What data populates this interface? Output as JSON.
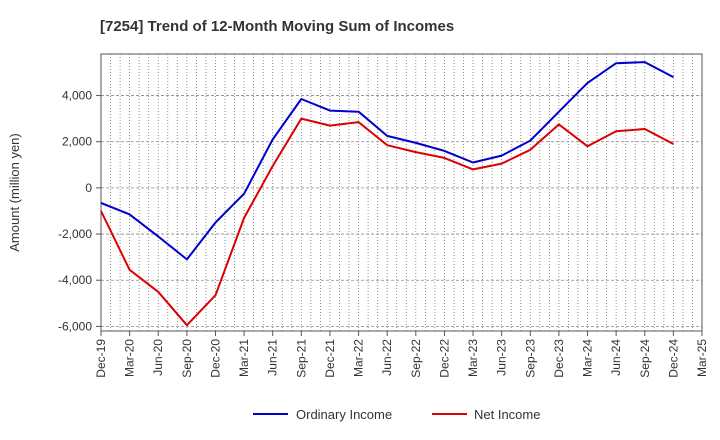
{
  "chart_data": {
    "type": "line",
    "title": "[7254]  Trend of 12-Month Moving Sum of Incomes",
    "xlabel": "",
    "ylabel": "Amount (million yen)",
    "ylim": [
      -6200,
      5800
    ],
    "yticks": [
      -6000,
      -4000,
      -2000,
      0,
      2000,
      4000
    ],
    "ytick_labels": [
      "-6,000",
      "-4,000",
      "-2,000",
      "0",
      "2,000",
      "4,000"
    ],
    "x_tick_labels": [
      "Dec-19",
      "Mar-20",
      "Jun-20",
      "Sep-20",
      "Dec-20",
      "Mar-21",
      "Jun-21",
      "Sep-21",
      "Dec-21",
      "Mar-22",
      "Jun-22",
      "Sep-22",
      "Dec-22",
      "Mar-23",
      "Jun-23",
      "Sep-23",
      "Dec-23",
      "Mar-24",
      "Jun-24",
      "Sep-24",
      "Dec-24",
      "Mar-25"
    ],
    "categories": [
      "Dec-19",
      "Mar-20",
      "Jun-20",
      "Sep-20",
      "Dec-20",
      "Mar-21",
      "Jun-21",
      "Sep-21",
      "Dec-21",
      "Mar-22",
      "Jun-22",
      "Sep-22",
      "Dec-22",
      "Mar-23",
      "Jun-23",
      "Sep-23",
      "Dec-23",
      "Mar-24",
      "Jun-24",
      "Sep-24",
      "Dec-24"
    ],
    "grid": true,
    "legend_position": "bottom",
    "series": [
      {
        "name": "Ordinary Income",
        "color": "#0000cc",
        "values": [
          -650,
          -1150,
          -2100,
          -3100,
          -1500,
          -250,
          2100,
          3850,
          3350,
          3300,
          2250,
          1950,
          1600,
          1100,
          1400,
          2050,
          3300,
          4550,
          5400,
          5450,
          4800
        ]
      },
      {
        "name": "Net Income",
        "color": "#dd0000",
        "values": [
          -1000,
          -3550,
          -4500,
          -5950,
          -4650,
          -1300,
          950,
          3000,
          2700,
          2850,
          1850,
          1550,
          1300,
          800,
          1050,
          1650,
          2750,
          1800,
          2450,
          2550,
          1900
        ]
      }
    ]
  }
}
